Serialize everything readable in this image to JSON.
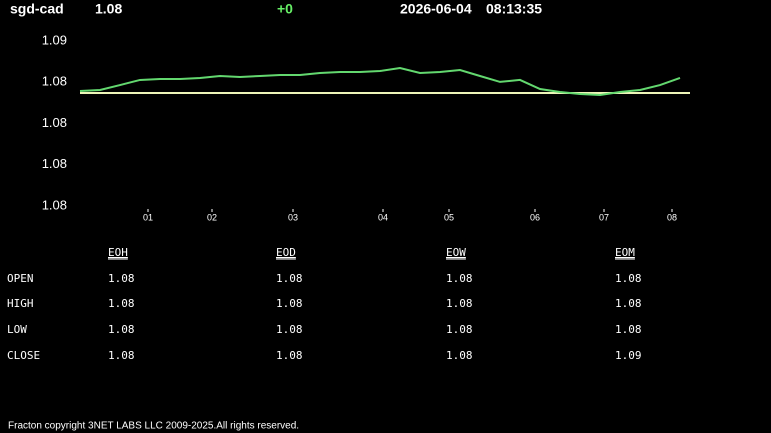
{
  "header": {
    "symbol": "sgd-cad",
    "price": "1.08",
    "change": "+0",
    "date": "2026-06-04",
    "time": "08:13:35"
  },
  "chart_data": {
    "type": "line",
    "x": [
      0,
      2,
      4,
      6,
      8,
      10,
      12,
      14,
      16,
      18,
      20,
      22,
      24,
      26,
      28,
      30,
      32,
      34,
      36,
      38,
      40,
      42,
      44,
      46,
      48,
      50,
      52,
      54,
      56,
      58,
      60
    ],
    "series": [
      {
        "color": "#63d86f",
        "values": [
          1.08197,
          1.08203,
          1.08233,
          1.08264,
          1.0827,
          1.0827,
          1.08276,
          1.08288,
          1.08282,
          1.08288,
          1.08294,
          1.08294,
          1.08306,
          1.08312,
          1.08312,
          1.08318,
          1.08336,
          1.08306,
          1.08312,
          1.08324,
          1.08288,
          1.08252,
          1.08264,
          1.08209,
          1.08191,
          1.08179,
          1.08173,
          1.08191,
          1.08203,
          1.08233,
          1.08276
        ]
      }
    ],
    "reference_line": {
      "value": 1.08185,
      "color": "#eef5b8"
    },
    "xlim": [
      0,
      61
    ],
    "xticks": [
      {
        "value": 6.8,
        "label": "01"
      },
      {
        "value": 13.2,
        "label": "02"
      },
      {
        "value": 21.3,
        "label": "03"
      },
      {
        "value": 30.3,
        "label": "04"
      },
      {
        "value": 36.9,
        "label": "05"
      },
      {
        "value": 45.5,
        "label": "06"
      },
      {
        "value": 52.4,
        "label": "07"
      },
      {
        "value": 59.2,
        "label": "08"
      }
    ],
    "ylim": [
      1.075,
      1.085
    ],
    "yticks": [
      {
        "value": 1.075,
        "label": "1.08"
      },
      {
        "value": 1.0775,
        "label": "1.08"
      },
      {
        "value": 1.08,
        "label": "1.08"
      },
      {
        "value": 1.0825,
        "label": "1.08"
      },
      {
        "value": 1.085,
        "label": "1.09"
      }
    ]
  },
  "table": {
    "columns": [
      "EOH",
      "EOD",
      "EOW",
      "EOM"
    ],
    "rows": [
      [
        "OPEN",
        "1.08",
        "1.08",
        "1.08",
        "1.08"
      ],
      [
        "HIGH",
        "1.08",
        "1.08",
        "1.08",
        "1.08"
      ],
      [
        "LOW",
        "1.08",
        "1.08",
        "1.08",
        "1.08"
      ],
      [
        "CLOSE",
        "1.08",
        "1.08",
        "1.08",
        "1.09"
      ]
    ]
  },
  "footer": "Fracton copyright 3NET LABS LLC 2009-2025.All rights reserved."
}
